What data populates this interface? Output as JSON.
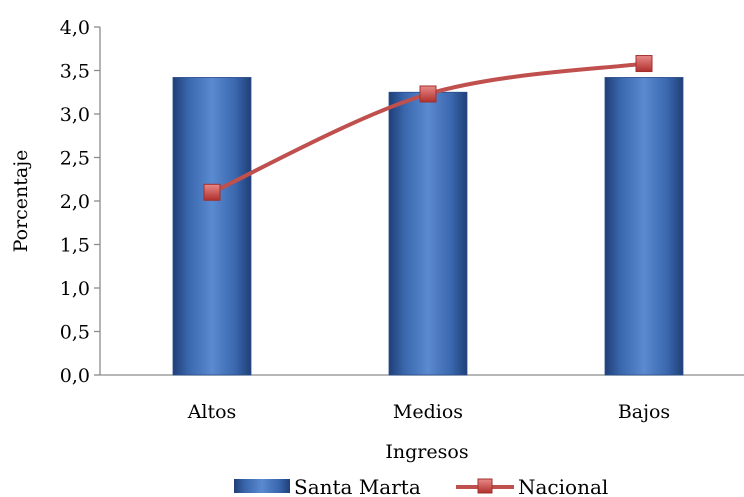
{
  "chart_data": {
    "type": "bar",
    "title": "",
    "xlabel": "Ingresos",
    "ylabel": "Porcentaje",
    "categories": [
      "Altos",
      "Medios",
      "Bajos"
    ],
    "ylim": [
      0,
      4.0
    ],
    "yticks": [
      "0,0",
      "0,5",
      "1,0",
      "1,5",
      "2,0",
      "2,5",
      "3,0",
      "3,5",
      "4,0"
    ],
    "grid": false,
    "legend": "bottom",
    "series": [
      {
        "name": "Santa Marta",
        "kind": "bar",
        "color": "#4472C4",
        "values": [
          3.42,
          3.25,
          3.42
        ]
      },
      {
        "name": "Nacional",
        "kind": "line",
        "color": "#C0504D",
        "values": [
          2.1,
          3.23,
          3.58
        ]
      }
    ]
  }
}
